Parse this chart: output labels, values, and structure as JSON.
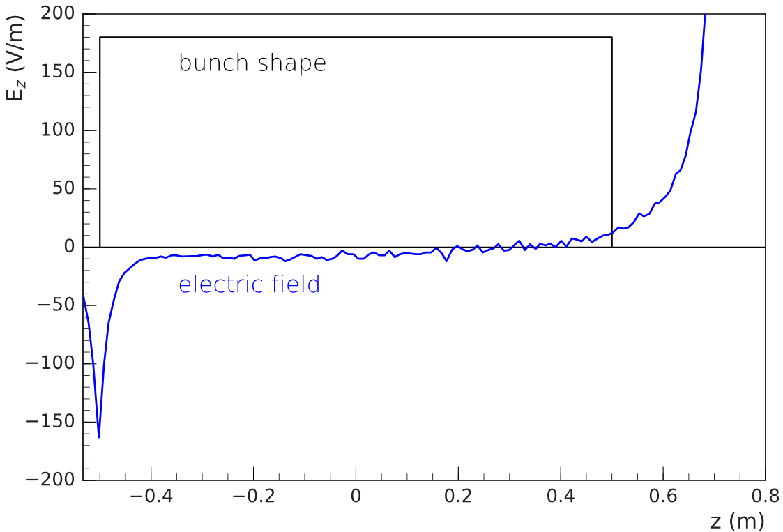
{
  "chart_data": {
    "type": "line",
    "xlabel": "z (m)",
    "ylabel": "E$_{z}$ (V/m)",
    "xlim": [
      -0.533,
      0.8
    ],
    "ylim": [
      -200,
      200
    ],
    "xticks": [
      {
        "value": -0.4,
        "label": "−0.4"
      },
      {
        "value": -0.2,
        "label": "−0.2"
      },
      0,
      0.2,
      0.4,
      0.6,
      0.8
    ],
    "yticks": [
      {
        "value": -200,
        "label": "−200"
      },
      {
        "value": -150,
        "label": "−150"
      },
      {
        "value": -100,
        "label": "−100"
      },
      {
        "value": -50,
        "label": "−50"
      },
      0,
      50,
      100,
      150,
      200
    ],
    "grid": false,
    "legend": false,
    "marker": "none",
    "line_style": "solid",
    "ref_lines": [
      {
        "axis": "y",
        "value": 0,
        "color": "#000000"
      }
    ],
    "series": [
      {
        "name": "bunch shape",
        "color": "#000000",
        "x": [
          -0.5,
          -0.5,
          0.5,
          0.5
        ],
        "values": [
          0,
          180,
          180,
          0
        ]
      },
      {
        "name": "electric field",
        "color": "#0000ff",
        "x": [
          -0.532,
          -0.522,
          -0.513,
          -0.502,
          -0.492,
          -0.483,
          -0.472,
          -0.462,
          -0.452,
          -0.431,
          -0.421,
          -0.411,
          -0.401,
          -0.39,
          -0.381,
          -0.371,
          -0.36,
          -0.351,
          -0.34,
          -0.31,
          -0.296,
          -0.289,
          -0.28,
          -0.269,
          -0.259,
          -0.248,
          -0.238,
          -0.228,
          -0.207,
          -0.198,
          -0.187,
          -0.178,
          -0.166,
          -0.158,
          -0.146,
          -0.138,
          -0.128,
          -0.108,
          -0.087,
          -0.076,
          -0.067,
          -0.056,
          -0.046,
          -0.037,
          -0.027,
          -0.016,
          -0.005,
          0.005,
          0.015,
          0.026,
          0.035,
          0.046,
          0.056,
          0.065,
          0.076,
          0.086,
          0.097,
          0.117,
          0.127,
          0.136,
          0.147,
          0.157,
          0.167,
          0.177,
          0.188,
          0.198,
          0.209,
          0.218,
          0.229,
          0.237,
          0.248,
          0.258,
          0.269,
          0.278,
          0.289,
          0.299,
          0.31,
          0.319,
          0.33,
          0.34,
          0.351,
          0.36,
          0.37,
          0.379,
          0.39,
          0.401,
          0.411,
          0.422,
          0.431,
          0.441,
          0.45,
          0.461,
          0.472,
          0.483,
          0.492,
          0.502,
          0.513,
          0.523,
          0.532,
          0.543,
          0.553,
          0.562,
          0.573,
          0.584,
          0.593,
          0.604,
          0.614,
          0.625,
          0.634,
          0.644,
          0.653,
          0.664,
          0.674,
          0.682
        ],
        "values": [
          -42.5,
          -65,
          -100,
          -163,
          -101,
          -65,
          -44,
          -29,
          -22,
          -14,
          -11,
          -10,
          -9,
          -9,
          -8,
          -9,
          -7,
          -7,
          -8,
          -7.5,
          -6.5,
          -6.5,
          -8,
          -6.5,
          -9.5,
          -9,
          -10,
          -7.5,
          -6.5,
          -11.5,
          -9.5,
          -9.5,
          -8.5,
          -8,
          -9.5,
          -12,
          -10.5,
          -6,
          -7.5,
          -10,
          -8.5,
          -11,
          -10,
          -7.5,
          -3,
          -6,
          -6,
          -10,
          -10,
          -6,
          -4.5,
          -7,
          -7,
          -3,
          -8.5,
          -6,
          -5,
          -6,
          -6,
          -4.5,
          -4.5,
          -0.5,
          -5,
          -12,
          -2,
          1,
          -2,
          -3.5,
          -2,
          1.5,
          -4.5,
          -2.5,
          -1,
          2.5,
          -3,
          -2.5,
          2,
          5.5,
          -2.5,
          2.5,
          -1.5,
          3,
          1.5,
          3,
          0,
          5.5,
          0.5,
          7.5,
          6.5,
          5,
          9,
          4.5,
          7.5,
          10,
          10.5,
          12.5,
          17,
          16,
          17,
          21.5,
          29,
          26.5,
          28.5,
          37.5,
          38.5,
          43,
          48.5,
          63,
          66,
          78.5,
          98,
          116,
          152,
          200
        ]
      }
    ]
  }
}
